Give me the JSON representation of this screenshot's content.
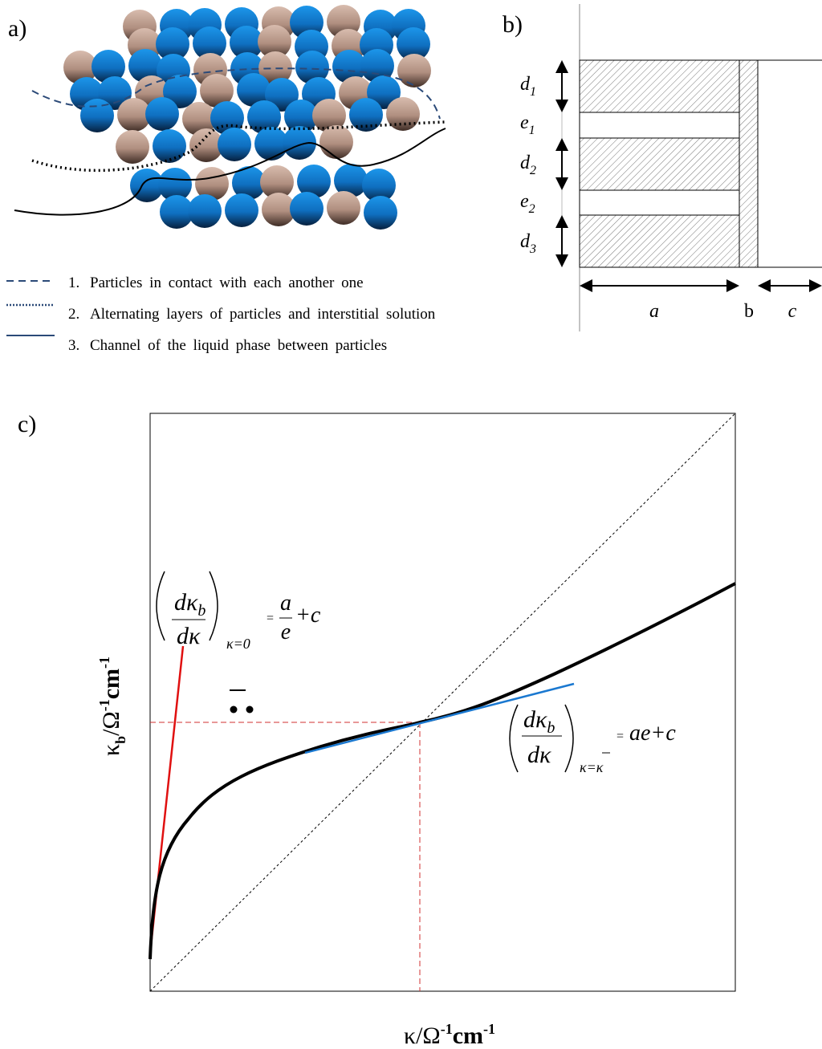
{
  "panel_a": {
    "label": "a)",
    "legend": [
      {
        "number": "1.",
        "text": "Particles in contact with each another one"
      },
      {
        "number": "2.",
        "text": "Alternating layers of particles and interstitial solution"
      },
      {
        "number": "3.",
        "text": "Channel of the liquid phase between particles"
      }
    ]
  },
  "panel_b": {
    "label": "b)",
    "layers": [
      {
        "base": "d",
        "sub": "1"
      },
      {
        "base": "e",
        "sub": "1"
      },
      {
        "base": "d",
        "sub": "2"
      },
      {
        "base": "e",
        "sub": "2"
      },
      {
        "base": "d",
        "sub": "3"
      }
    ],
    "widths": [
      "a",
      "b",
      "c"
    ]
  },
  "panel_c": {
    "label": "c)",
    "x_label": [
      "κ/Ω",
      "-1",
      "cm",
      "-1"
    ],
    "y_label": [
      "κ",
      "b",
      "/Ω",
      "-1",
      "cm",
      "-1"
    ],
    "eq1": {
      "num": "dκ",
      "num_sub": "b",
      "den": "dκ",
      "cond": "κ=0",
      "eq": "=",
      "rhs_num": "a",
      "rhs_den": "e",
      "rhs_tail": "+c"
    },
    "eq2": {
      "num": "dκ",
      "num_sub": "b",
      "den": "dκ",
      "cond": "κ=κ",
      "eq": "=",
      "rhs": "ae+c"
    }
  }
}
